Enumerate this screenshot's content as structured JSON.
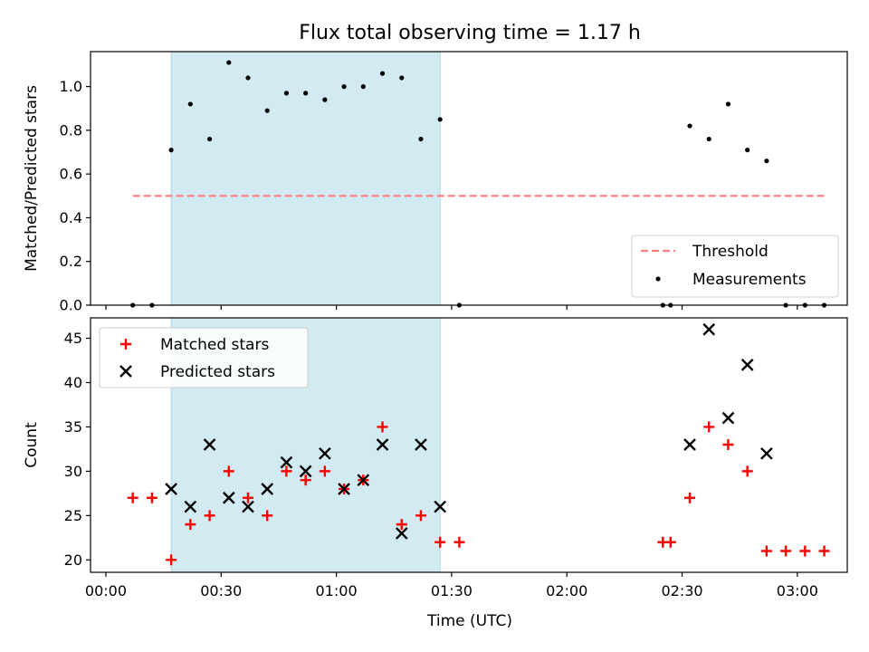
{
  "title": "Flux total observing time = 1.17 h",
  "xlabel": "Time (UTC)",
  "xticks": [
    "00:00",
    "00:30",
    "01:00",
    "01:30",
    "02:00",
    "02:30",
    "03:00"
  ],
  "colors": {
    "shade": "#add8e6",
    "threshold": "#ff7f7f",
    "matched": "#ff0000",
    "predicted": "#000000",
    "measurement": "#000000"
  },
  "chart_data": [
    {
      "type": "scatter",
      "ylabel": "Matched/Predicted stars",
      "ylim": [
        0,
        1.16
      ],
      "yticks": [
        "0.0",
        "0.2",
        "0.4",
        "0.6",
        "0.8",
        "1.0"
      ],
      "shaded_interval": [
        "00:17",
        "01:27"
      ],
      "threshold": {
        "name": "Threshold",
        "value": 0.5,
        "x_range": [
          "00:07",
          "03:07"
        ]
      },
      "legend": {
        "placement": "lower right",
        "entries": [
          "Threshold",
          "Measurements"
        ]
      },
      "series": [
        {
          "name": "Measurements",
          "x": [
            "00:07",
            "00:12",
            "00:17",
            "00:22",
            "00:27",
            "00:32",
            "00:37",
            "00:42",
            "00:47",
            "00:52",
            "00:57",
            "01:02",
            "01:07",
            "01:12",
            "01:17",
            "01:22",
            "01:27",
            "01:32",
            "02:25",
            "02:27",
            "02:32",
            "02:37",
            "02:42",
            "02:47",
            "02:52",
            "02:57",
            "03:02",
            "03:07"
          ],
          "y": [
            0,
            0,
            0.71,
            0.92,
            0.76,
            1.11,
            1.04,
            0.89,
            0.97,
            0.97,
            0.94,
            1.0,
            1.0,
            1.06,
            1.04,
            0.76,
            0.85,
            0,
            0,
            0,
            0.82,
            0.76,
            0.92,
            0.71,
            0.66,
            0,
            0,
            0
          ]
        }
      ]
    },
    {
      "type": "scatter",
      "ylabel": "Count",
      "ylim": [
        18.6,
        47.3
      ],
      "yticks": [
        "20",
        "25",
        "30",
        "35",
        "40",
        "45"
      ],
      "shaded_interval": [
        "00:17",
        "01:27"
      ],
      "legend": {
        "placement": "upper left",
        "entries": [
          "Matched stars",
          "Predicted stars"
        ]
      },
      "series": [
        {
          "name": "Matched stars",
          "x": [
            "00:07",
            "00:12",
            "00:17",
            "00:22",
            "00:27",
            "00:32",
            "00:37",
            "00:42",
            "00:47",
            "00:52",
            "00:57",
            "01:02",
            "01:07",
            "01:12",
            "01:17",
            "01:22",
            "01:27",
            "01:32",
            "02:25",
            "02:27",
            "02:32",
            "02:37",
            "02:42",
            "02:47",
            "02:52",
            "02:57",
            "03:02",
            "03:07"
          ],
          "y": [
            27,
            27,
            20,
            24,
            25,
            30,
            27,
            25,
            30,
            29,
            30,
            28,
            29,
            35,
            24,
            25,
            22,
            22,
            22,
            22,
            27,
            35,
            33,
            30,
            21,
            21,
            21,
            21
          ]
        },
        {
          "name": "Predicted stars",
          "x": [
            "00:17",
            "00:22",
            "00:27",
            "00:32",
            "00:37",
            "00:42",
            "00:47",
            "00:52",
            "00:57",
            "01:02",
            "01:07",
            "01:12",
            "01:17",
            "01:22",
            "01:27",
            "02:32",
            "02:37",
            "02:42",
            "02:47",
            "02:52"
          ],
          "y": [
            28,
            26,
            33,
            27,
            26,
            28,
            31,
            30,
            32,
            28,
            29,
            33,
            23,
            33,
            26,
            33,
            46,
            36,
            42,
            32
          ]
        }
      ]
    }
  ]
}
